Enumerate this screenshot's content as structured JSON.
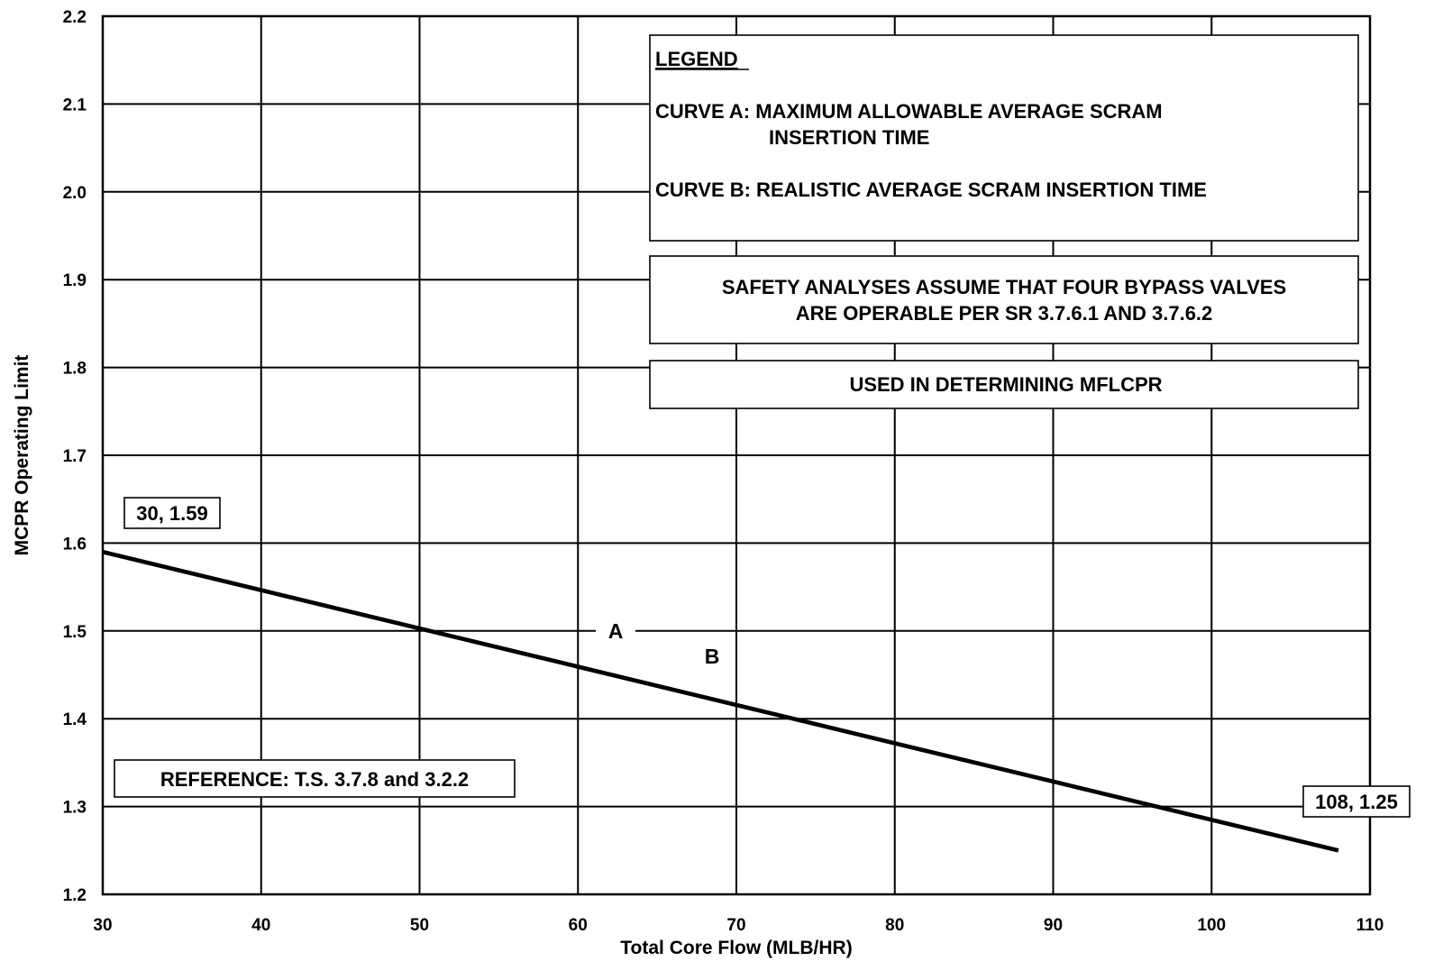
{
  "chart_data": {
    "type": "line",
    "xlabel": "Total Core Flow (MLB/HR)",
    "ylabel": "MCPR Operating Limit",
    "xlim": [
      30,
      110
    ],
    "ylim": [
      1.2,
      2.2
    ],
    "x_ticks": [
      "30",
      "40",
      "50",
      "60",
      "70",
      "80",
      "90",
      "100",
      "110"
    ],
    "y_ticks": [
      "1.2",
      "1.3",
      "1.4",
      "1.5",
      "1.6",
      "1.7",
      "1.8",
      "1.9",
      "2.0",
      "2.1",
      "2.2"
    ],
    "grid": true,
    "series": [
      {
        "name": "A",
        "x": [
          30,
          108
        ],
        "y": [
          1.59,
          1.25
        ]
      },
      {
        "name": "B",
        "x": [
          30,
          108
        ],
        "y": [
          1.59,
          1.25
        ]
      }
    ],
    "point_callouts": [
      "30, 1.59",
      "108, 1.25"
    ],
    "legend": {
      "title": "LEGEND",
      "curve_a_line1": "CURVE A: MAXIMUM ALLOWABLE AVERAGE SCRAM",
      "curve_a_line2": "INSERTION TIME",
      "curve_b": "CURVE B: REALISTIC AVERAGE SCRAM INSERTION TIME"
    },
    "annotations": {
      "safety_line1": "SAFETY ANALYSES ASSUME THAT FOUR BYPASS VALVES",
      "safety_line2": "ARE OPERABLE PER SR 3.7.6.1 AND 3.7.6.2",
      "mflcpr": "USED IN DETERMINING MFLCPR",
      "reference": "REFERENCE: T.S. 3.7.8 and 3.2.2"
    }
  }
}
